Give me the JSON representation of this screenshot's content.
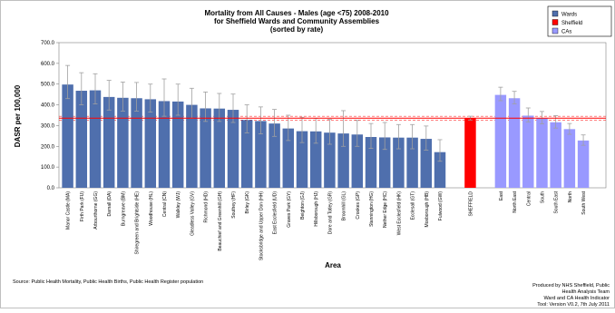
{
  "chart_data": {
    "type": "bar",
    "title": "Mortality from All Causes - Males (age <75) 2008-2010",
    "subtitle_lines": [
      "for Sheffield Wards and Community Assemblies",
      "(sorted by rate)"
    ],
    "xlabel": "Area",
    "ylabel": "DASR per 100,000",
    "ylim": [
      0,
      700
    ],
    "yticks": [
      "0.0",
      "100.0",
      "200.0",
      "300.0",
      "400.0",
      "500.0",
      "600.0",
      "700.0"
    ],
    "grid": false,
    "legend_position": "top-right",
    "legend": [
      {
        "name": "Wards",
        "color": "#4f6fad"
      },
      {
        "name": "Sheffield",
        "color": "#ff0000"
      },
      {
        "name": "CAs",
        "color": "#9999ff"
      }
    ],
    "reference_line": {
      "value": 336,
      "ci_low": 327,
      "ci_high": 345,
      "color": "#ff0000"
    },
    "series": [
      {
        "name": "Wards",
        "color": "#4f6fad",
        "categories": [
          "Manor Castle (MA)",
          "Firth Park (FU)",
          "Arbourthorne (GG)",
          "Darnall (DA)",
          "Burngreave (BM)",
          "Shiregreen and Brightside (HE)",
          "Woodhouse (HL)",
          "Central (CN)",
          "Walkley (WJ)",
          "Gleadless Valley (GV)",
          "Richmond (HD)",
          "Beauchief and Greenhill (GH)",
          "Southey (HF)",
          "Birley (GK)",
          "Stocksbridge and Upper Don (HH)",
          "East Ecclesfield (UD)",
          "Graves Park (GY)",
          "Beighton (GJ)",
          "Hillsborough (HJ)",
          "Dore and Totley (GR)",
          "Broomhill (GL)",
          "Crookes (GP)",
          "Stannington (HG)",
          "Nether Edge (HC)",
          "West Ecclesfield (HK)",
          "Ecclesall (GT)",
          "Mosborough (HB)",
          "Fulwood (GW)"
        ],
        "values": [
          498,
          468,
          470,
          438,
          434,
          432,
          427,
          418,
          416,
          400,
          383,
          382,
          376,
          327,
          322,
          310,
          286,
          273,
          272,
          266,
          262,
          257,
          245,
          243,
          242,
          242,
          236,
          172
        ],
        "ci_low": [
          430,
          400,
          405,
          375,
          370,
          370,
          365,
          345,
          350,
          335,
          320,
          320,
          315,
          265,
          260,
          248,
          228,
          218,
          215,
          210,
          200,
          200,
          190,
          185,
          188,
          188,
          182,
          128
        ],
        "ci_high": [
          590,
          555,
          550,
          518,
          510,
          508,
          500,
          525,
          500,
          480,
          462,
          455,
          452,
          400,
          390,
          378,
          350,
          340,
          335,
          330,
          372,
          325,
          310,
          315,
          305,
          305,
          298,
          232
        ]
      },
      {
        "name": "Sheffield",
        "color": "#ff0000",
        "categories": [
          "SHEFFIELD"
        ],
        "values": [
          336
        ],
        "ci_low": [
          327
        ],
        "ci_high": [
          345
        ]
      },
      {
        "name": "CAs",
        "color": "#9999ff",
        "categories": [
          "East",
          "North East",
          "Central",
          "South",
          "South East",
          "North",
          "South West"
        ],
        "values": [
          448,
          432,
          348,
          336,
          316,
          283,
          228
        ],
        "ci_low": [
          420,
          405,
          318,
          308,
          288,
          258,
          205
        ],
        "ci_high": [
          485,
          465,
          385,
          368,
          348,
          310,
          255
        ]
      }
    ]
  },
  "source_text": "Source: Public Health Mortality, Public Health Births, Public Health Register population",
  "credit_lines": [
    "Produced by NHS Sheffield, Public",
    "Health Analysis Team",
    "Ward and CA Health Indicator",
    "Tool: Version V0.2, 7th July 2011"
  ]
}
